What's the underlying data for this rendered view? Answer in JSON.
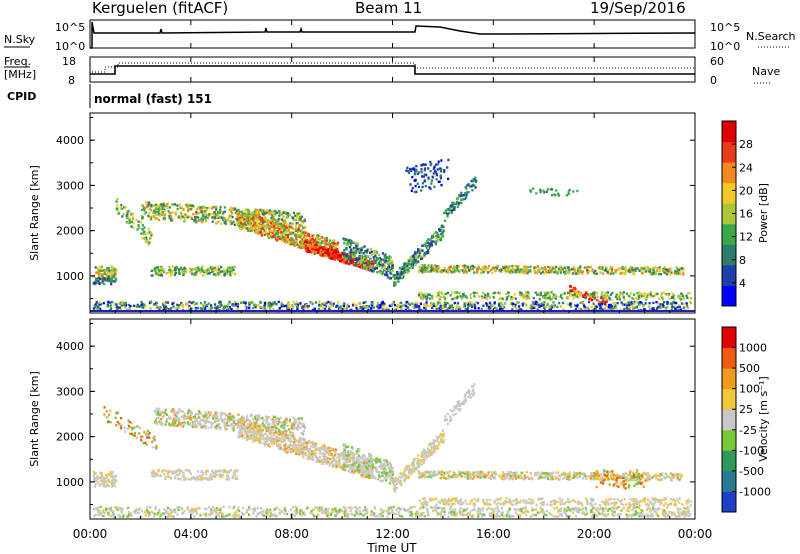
{
  "header": {
    "station": "Kerguelen (fitACF)",
    "beam": "Beam 11",
    "date": "19/Sep/2016"
  },
  "top_panel": {
    "left_label": "N.Sky",
    "right_label": "N.Search",
    "left_ticks": [
      "10^5",
      "10^0"
    ],
    "right_ticks": [
      "10^5",
      "10^0"
    ]
  },
  "freq_panel": {
    "left_label_1": "Freq.",
    "left_label_2": "[MHz]",
    "right_label": "Nave",
    "left_ticks": [
      "18",
      "8"
    ],
    "right_ticks": [
      "60",
      "0"
    ]
  },
  "cpid_panel": {
    "label": "CPID",
    "mode": "normal (fast) 151"
  },
  "chart_data": [
    {
      "type": "heatmap",
      "ylabel": "Slant Range [km]",
      "yticks": [
        "4000",
        "3000",
        "2000",
        "1000"
      ],
      "colorbar": {
        "label": "Power [dB]",
        "ticks": [
          "28",
          "24",
          "20",
          "16",
          "12",
          "8",
          "4"
        ],
        "colors": [
          "#0000ff",
          "#1f3fa8",
          "#2e7d6a",
          "#3aa84a",
          "#a8c83a",
          "#f0c828",
          "#f08a1e",
          "#e83a1a",
          "#e00000"
        ]
      },
      "ylim": [
        180,
        4600
      ],
      "xlim": [
        0,
        24
      ]
    },
    {
      "type": "heatmap",
      "ylabel": "Slant Range [km]",
      "yticks": [
        "4000",
        "3000",
        "2000",
        "1000"
      ],
      "colorbar": {
        "label": "Velocity [m s⁻¹]",
        "ticks": [
          "1000",
          "500",
          "100",
          "25",
          "-25",
          "-100",
          "-500",
          "-1000"
        ],
        "colors": [
          "#1f3fc8",
          "#2a7a96",
          "#2e9a5a",
          "#78c83a",
          "#c8c8c8",
          "#f0c83a",
          "#f09a1e",
          "#f05a14",
          "#e00000"
        ]
      },
      "ylim": [
        180,
        4600
      ],
      "xlim": [
        0,
        24
      ]
    }
  ],
  "xaxis": {
    "ticks": [
      "00:00",
      "04:00",
      "08:00",
      "12:00",
      "16:00",
      "20:00",
      "00:00"
    ],
    "label": "Time UT"
  }
}
